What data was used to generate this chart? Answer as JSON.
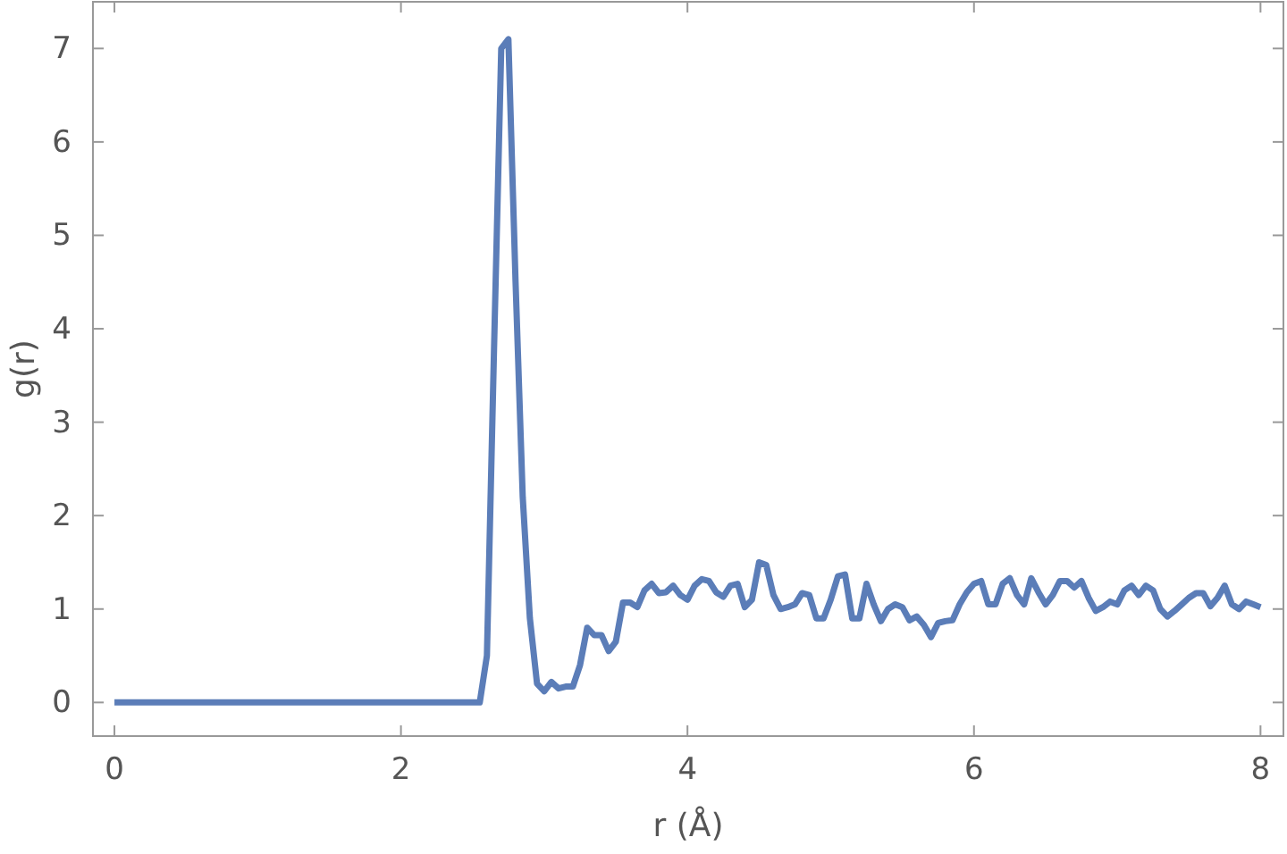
{
  "chart_data": {
    "type": "line",
    "xlabel": "r (Å)",
    "ylabel": "g(r)",
    "xlim": [
      -0.15,
      8.16
    ],
    "ylim": [
      -0.36,
      7.5
    ],
    "xticks": [
      0,
      2,
      4,
      6,
      8
    ],
    "yticks": [
      0,
      1,
      2,
      3,
      4,
      5,
      6,
      7
    ],
    "grid": false,
    "marker": "none",
    "line_style": "solid",
    "series": [
      {
        "color": "#5b7db8",
        "x": [
          0,
          2.55,
          2.6,
          2.65,
          2.7,
          2.75,
          2.8,
          2.85,
          2.9,
          2.95,
          3.0,
          3.05,
          3.1,
          3.15,
          3.2,
          3.25,
          3.3,
          3.35,
          3.4,
          3.45,
          3.5,
          3.55,
          3.6,
          3.65,
          3.7,
          3.75,
          3.8,
          3.85,
          3.9,
          3.95,
          4.0,
          4.05,
          4.1,
          4.15,
          4.2,
          4.25,
          4.3,
          4.35,
          4.4,
          4.45,
          4.5,
          4.55,
          4.6,
          4.65,
          4.7,
          4.75,
          4.8,
          4.85,
          4.9,
          4.95,
          5.0,
          5.05,
          5.1,
          5.15,
          5.2,
          5.25,
          5.3,
          5.35,
          5.4,
          5.45,
          5.5,
          5.55,
          5.6,
          5.65,
          5.7,
          5.75,
          5.8,
          5.85,
          5.9,
          5.95,
          6.0,
          6.05,
          6.1,
          6.15,
          6.2,
          6.25,
          6.3,
          6.35,
          6.4,
          6.45,
          6.5,
          6.55,
          6.6,
          6.65,
          6.7,
          6.75,
          6.8,
          6.85,
          6.9,
          6.95,
          7.0,
          7.05,
          7.1,
          7.15,
          7.2,
          7.25,
          7.3,
          7.35,
          7.4,
          7.45,
          7.5,
          7.55,
          7.6,
          7.65,
          7.7,
          7.75,
          7.8,
          7.85,
          7.9,
          7.95,
          8.0
        ],
        "values": [
          0,
          0,
          0.5,
          3.8,
          7.0,
          7.1,
          4.5,
          2.2,
          0.9,
          0.2,
          0.12,
          0.22,
          0.15,
          0.17,
          0.17,
          0.4,
          0.8,
          0.72,
          0.72,
          0.55,
          0.65,
          1.07,
          1.07,
          1.02,
          1.2,
          1.27,
          1.17,
          1.18,
          1.25,
          1.15,
          1.1,
          1.25,
          1.32,
          1.3,
          1.18,
          1.13,
          1.25,
          1.27,
          1.02,
          1.1,
          1.5,
          1.47,
          1.15,
          1.0,
          1.02,
          1.05,
          1.17,
          1.15,
          0.9,
          0.9,
          1.1,
          1.35,
          1.37,
          0.9,
          0.9,
          1.27,
          1.05,
          0.87,
          1.0,
          1.05,
          1.02,
          0.88,
          0.92,
          0.83,
          0.7,
          0.85,
          0.87,
          0.88,
          1.05,
          1.18,
          1.27,
          1.3,
          1.05,
          1.05,
          1.27,
          1.33,
          1.15,
          1.05,
          1.33,
          1.18,
          1.05,
          1.15,
          1.3,
          1.3,
          1.23,
          1.3,
          1.12,
          0.98,
          1.02,
          1.08,
          1.05,
          1.2,
          1.25,
          1.15,
          1.25,
          1.2,
          1.0,
          0.92,
          0.98,
          1.05,
          1.12,
          1.17,
          1.17,
          1.03,
          1.12,
          1.25,
          1.05,
          1.0,
          1.08,
          1.05,
          1.02
        ]
      }
    ]
  }
}
